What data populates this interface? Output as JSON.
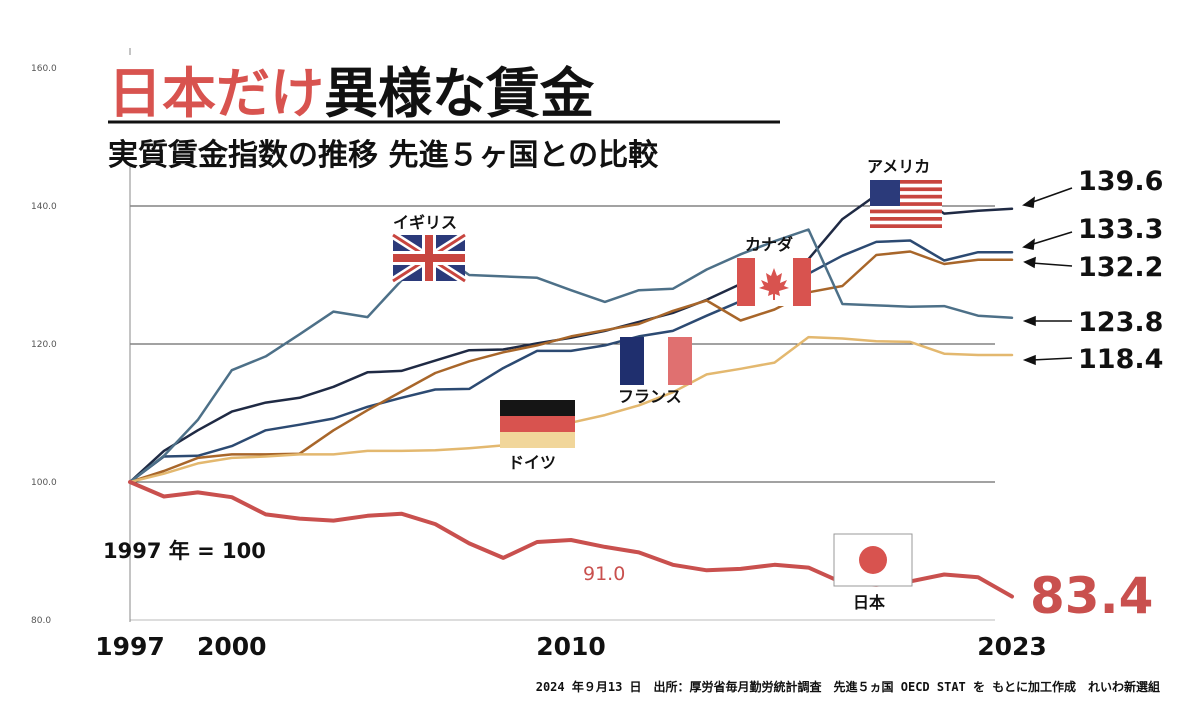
{
  "chart_data": {
    "type": "line",
    "title_red": "日本だけ",
    "title_black": "異様な賃金",
    "subtitle": "実質賃金指数の推移 先進５ヶ国との比較",
    "base_note": "1997 年 = 100",
    "ylim": [
      80,
      160
    ],
    "yticks": [
      80,
      100,
      120,
      140,
      160
    ],
    "ytick_labels": [
      "80.0",
      "100.0",
      "120.0",
      "140.0",
      "160.0"
    ],
    "xlim": [
      1997,
      2023
    ],
    "xticks": [
      1997,
      2000,
      2010,
      2023
    ],
    "xtick_labels": [
      "1997",
      "2000",
      "2010",
      "2023"
    ],
    "x": [
      1997,
      1998,
      1999,
      2000,
      2001,
      2002,
      2003,
      2004,
      2005,
      2006,
      2007,
      2008,
      2009,
      2010,
      2011,
      2012,
      2013,
      2014,
      2015,
      2016,
      2017,
      2018,
      2019,
      2020,
      2021,
      2022,
      2023
    ],
    "series": [
      {
        "name": "アメリカ",
        "color": "#1f2a44",
        "width": 2.5,
        "values": [
          100,
          104.5,
          107.5,
          110.2,
          111.5,
          112.2,
          113.8,
          115.9,
          116.1,
          117.6,
          119.1,
          119.2,
          120.1,
          120.9,
          121.9,
          123.2,
          124.5,
          126.4,
          128.7,
          130.7,
          132.3,
          138.1,
          141.6,
          142.3,
          138.9,
          139.3,
          139.6
        ]
      },
      {
        "name": "カナダ",
        "color": "#2c4a72",
        "width": 2.5,
        "values": [
          100,
          103.7,
          103.8,
          105.2,
          107.5,
          108.3,
          109.2,
          110.9,
          112.2,
          113.4,
          113.5,
          116.5,
          119.0,
          119.0,
          119.8,
          121.1,
          121.9,
          124.1,
          126.2,
          128.5,
          130.2,
          132.8,
          134.8,
          135.0,
          132.1,
          133.3,
          133.3
        ]
      },
      {
        "name": "フランス",
        "color": "#a8662a",
        "width": 2.5,
        "values": [
          100,
          101.6,
          103.5,
          104.0,
          104.0,
          104.1,
          107.5,
          110.4,
          113.1,
          115.8,
          117.5,
          118.8,
          119.8,
          121.1,
          122.0,
          122.9,
          124.8,
          126.3,
          123.4,
          125.0,
          127.5,
          128.4,
          132.9,
          133.4,
          131.6,
          132.2,
          132.2
        ]
      },
      {
        "name": "イギリス",
        "color": "#4d7088",
        "width": 2.5,
        "values": [
          100,
          103.8,
          109.0,
          116.2,
          118.2,
          121.4,
          124.7,
          123.9,
          129.2,
          133.4,
          130.0,
          129.8,
          129.6,
          127.8,
          126.1,
          127.8,
          128.0,
          130.8,
          133.0,
          134.9,
          136.6,
          125.8,
          125.6,
          125.4,
          125.5,
          124.1,
          123.8
        ]
      },
      {
        "name": "ドイツ",
        "color": "#e3b86f",
        "width": 2.5,
        "values": [
          100,
          101.2,
          102.7,
          103.5,
          103.7,
          104.0,
          104.0,
          104.5,
          104.5,
          104.6,
          104.9,
          105.3,
          106.8,
          108.6,
          109.7,
          111.1,
          113.0,
          115.6,
          116.4,
          117.3,
          121.0,
          120.8,
          120.4,
          120.3,
          118.6,
          118.4,
          118.4
        ]
      },
      {
        "name": "日本",
        "color": "#c9504e",
        "width": 4,
        "values": [
          100,
          97.9,
          98.5,
          97.8,
          95.3,
          94.7,
          94.4,
          95.1,
          95.4,
          93.9,
          91.1,
          89.0,
          91.3,
          91.6,
          90.6,
          89.8,
          88.0,
          87.2,
          87.4,
          88.0,
          87.6,
          85.4,
          85.1,
          85.6,
          86.6,
          86.2,
          83.4
        ]
      }
    ],
    "end_labels": [
      "139.6",
      "133.3",
      "132.2",
      "123.8",
      "118.4"
    ],
    "japan_end_label": "83.4",
    "japan_annotation": "91.0",
    "country_labels": [
      "アメリカ",
      "イギリス",
      "カナダ",
      "フランス",
      "ドイツ",
      "日本"
    ],
    "source": "2024 年９月13 日　出所：厚労省毎月勤労統計調査　先進５ヵ国 OECD STAT を もとに加工作成　れいわ新選組"
  },
  "colors": {
    "accent": "#d8534f",
    "japan": "#c9504e",
    "us_blue": "#2b3a7a",
    "fr_blue": "#1f2f6e"
  }
}
